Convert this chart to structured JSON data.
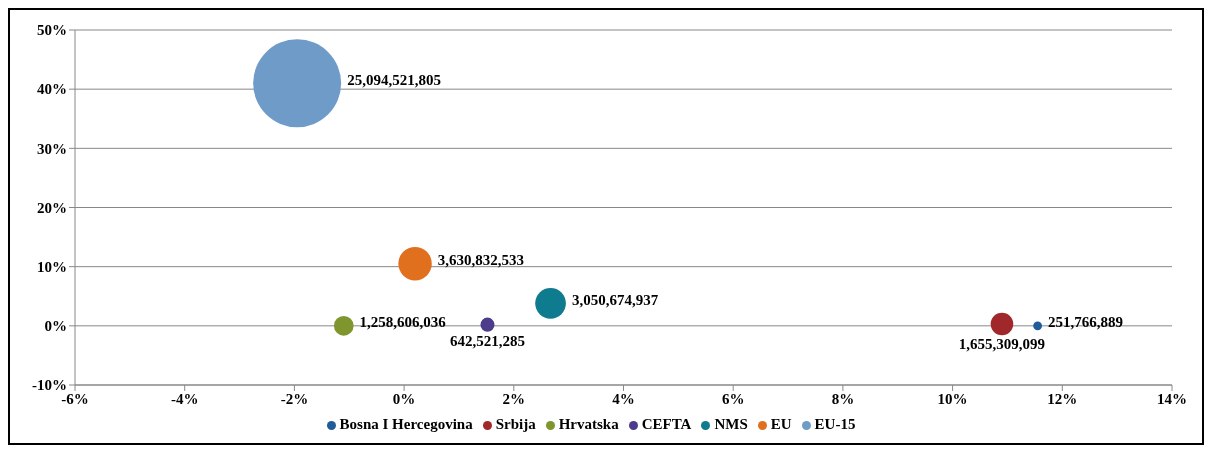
{
  "chart_data": {
    "type": "bubble",
    "series": [
      {
        "name": "Bosna I Hercegovina",
        "color": "#1f5c99",
        "x": [
          11.55
        ],
        "values": [
          0
        ],
        "sizes": [
          251766889
        ],
        "value_labels": [
          "251,766,889"
        ]
      },
      {
        "name": "Srbija",
        "color": "#a0282a",
        "x": [
          10.9
        ],
        "values": [
          0.3
        ],
        "sizes": [
          1655309099
        ],
        "value_labels": [
          "1,655,309,099"
        ]
      },
      {
        "name": "Hrvatska",
        "color": "#7f962f",
        "x": [
          -1.1
        ],
        "values": [
          0
        ],
        "sizes": [
          1258606036
        ],
        "value_labels": [
          "1,258,606,036"
        ]
      },
      {
        "name": "CEFTA",
        "color": "#4d3b8c",
        "x": [
          1.52
        ],
        "values": [
          0.2
        ],
        "sizes": [
          642521285
        ],
        "value_labels": [
          "642,521,285"
        ]
      },
      {
        "name": "NMS",
        "color": "#0f7b8f",
        "x": [
          2.67
        ],
        "values": [
          3.8
        ],
        "sizes": [
          3050674937
        ],
        "value_labels": [
          "3,050,674,937"
        ]
      },
      {
        "name": "EU",
        "color": "#e0701e",
        "x": [
          0.2
        ],
        "values": [
          10.5
        ],
        "sizes": [
          3630832533
        ],
        "value_labels": [
          "3,630,832,533"
        ]
      },
      {
        "name": "EU-15",
        "color": "#6e9bc8",
        "x": [
          -1.95
        ],
        "values": [
          41
        ],
        "sizes": [
          25094521805
        ],
        "value_labels": [
          "25,094,521,805"
        ]
      }
    ],
    "xlim": [
      -6,
      14
    ],
    "xticks": [
      {
        "value": -6,
        "label": "-6%"
      },
      {
        "value": -4,
        "label": "-4%"
      },
      {
        "value": -2,
        "label": "-2%"
      },
      {
        "value": 0,
        "label": "0%"
      },
      {
        "value": 2,
        "label": "2%"
      },
      {
        "value": 4,
        "label": "4%"
      },
      {
        "value": 6,
        "label": "6%"
      },
      {
        "value": 8,
        "label": "8%"
      },
      {
        "value": 10,
        "label": "10%"
      },
      {
        "value": 12,
        "label": "12%"
      },
      {
        "value": 14,
        "label": "14%"
      }
    ],
    "ylim": [
      -10,
      50
    ],
    "yticks": [
      {
        "value": -10,
        "label": "-10%"
      },
      {
        "value": 0,
        "label": "0%"
      },
      {
        "value": 10,
        "label": "10%"
      },
      {
        "value": 20,
        "label": "20%"
      },
      {
        "value": 30,
        "label": "30%"
      },
      {
        "value": 40,
        "label": "40%"
      },
      {
        "value": 50,
        "label": "50%"
      }
    ],
    "grid": "y",
    "legend": "bottom"
  }
}
